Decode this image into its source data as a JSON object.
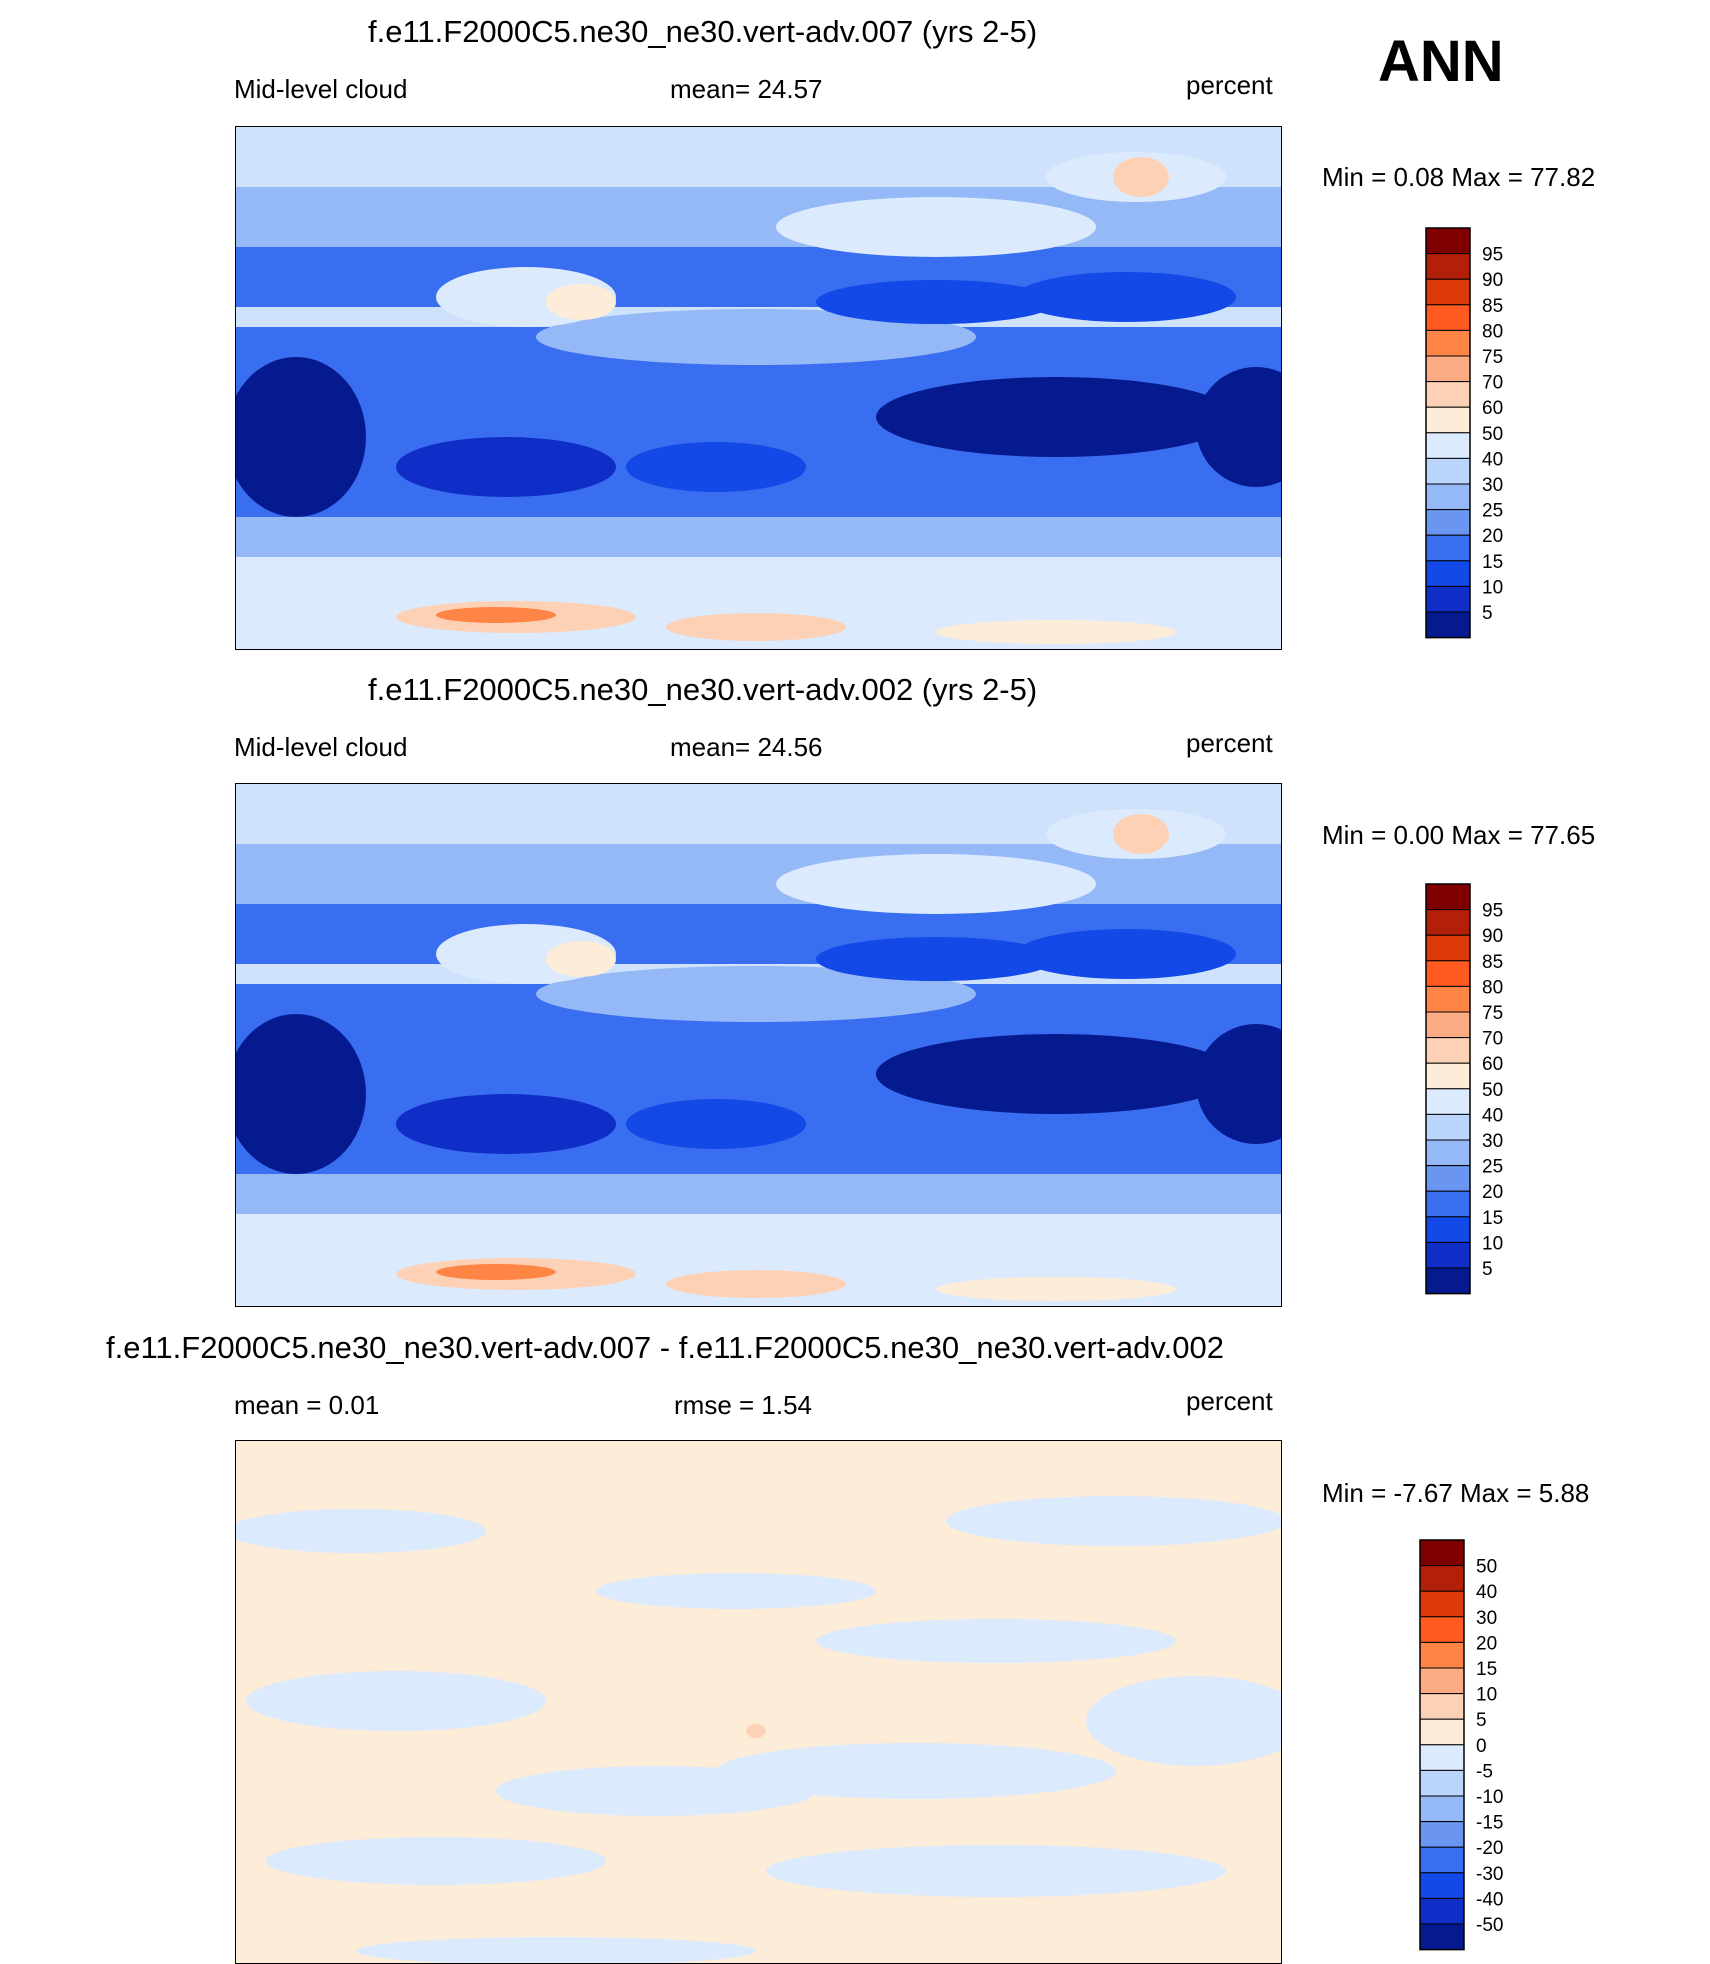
{
  "season": "ANN",
  "unit": "percent",
  "panels": [
    {
      "title": "f.e11.F2000C5.ne30_ne30.vert-adv.007 (yrs 2-5)",
      "left_label": "Mid-level cloud",
      "center_label": "mean=  24.57",
      "right_label": "percent",
      "minmax": "Min =    0.08 Max =  77.82",
      "colorbar_labels": [
        "95",
        "90",
        "85",
        "80",
        "75",
        "70",
        "60",
        "50",
        "40",
        "30",
        "25",
        "20",
        "15",
        "10",
        "5"
      ],
      "colorbar_colors": [
        "#800000",
        "#b2200a",
        "#dd3a0c",
        "#ff5a1f",
        "#ff8547",
        "#fcac84",
        "#fdd1b6",
        "#fdecd8",
        "#dbeafc",
        "#bad5fb",
        "#95b9f7",
        "#6a96f2",
        "#3a6ef0",
        "#1349e6",
        "#0f2ec7",
        "#061a8f"
      ]
    },
    {
      "title": "f.e11.F2000C5.ne30_ne30.vert-adv.002 (yrs 2-5)",
      "left_label": "Mid-level cloud",
      "center_label": "mean=  24.56",
      "right_label": "percent",
      "minmax": "Min =    0.00 Max =  77.65",
      "colorbar_labels": [
        "95",
        "90",
        "85",
        "80",
        "75",
        "70",
        "60",
        "50",
        "40",
        "30",
        "25",
        "20",
        "15",
        "10",
        "5"
      ],
      "colorbar_colors": [
        "#800000",
        "#b2200a",
        "#dd3a0c",
        "#ff5a1f",
        "#ff8547",
        "#fcac84",
        "#fdd1b6",
        "#fdecd8",
        "#dbeafc",
        "#bad5fb",
        "#95b9f7",
        "#6a96f2",
        "#3a6ef0",
        "#1349e6",
        "#0f2ec7",
        "#061a8f"
      ]
    },
    {
      "title": "f.e11.F2000C5.ne30_ne30.vert-adv.007 - f.e11.F2000C5.ne30_ne30.vert-adv.002",
      "left_label": "mean =    0.01",
      "center_label": "rmse =    1.54",
      "right_label": "percent",
      "minmax": "Min =  -7.67 Max =    5.88",
      "colorbar_labels": [
        "50",
        "40",
        "30",
        "20",
        "15",
        "10",
        "5",
        "0",
        "-5",
        "-10",
        "-15",
        "-20",
        "-30",
        "-40",
        "-50"
      ],
      "colorbar_colors": [
        "#800000",
        "#b2200a",
        "#dd3a0c",
        "#ff5a1f",
        "#ff8547",
        "#fcac84",
        "#fdd1b6",
        "#fdecd8",
        "#dbeafc",
        "#bad5fb",
        "#95b9f7",
        "#6a96f2",
        "#3a6ef0",
        "#1349e6",
        "#0f2ec7",
        "#061a8f"
      ]
    }
  ]
}
